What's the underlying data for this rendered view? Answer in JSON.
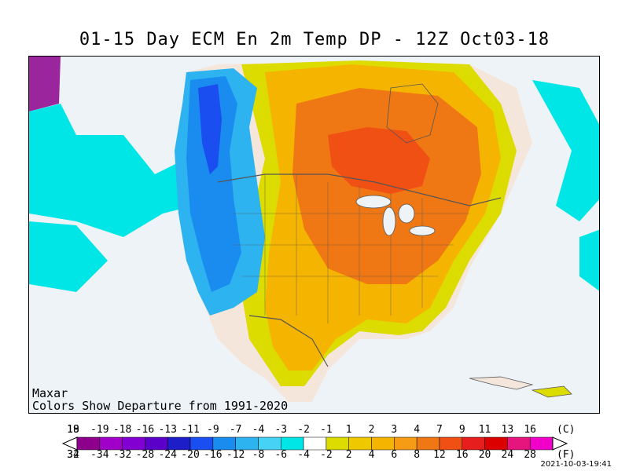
{
  "title": "01-15 Day ECM En 2m Temp DP - 12Z Oct03-18",
  "credit": {
    "provider": "Maxar",
    "note": "Colors Show Departure from 1991-2020"
  },
  "legend": {
    "celsius_unit": "(C)",
    "fahrenheit_unit": "(F)",
    "celsius_ticks": [
      "-19",
      "-18",
      "-16",
      "-13",
      "-11",
      "-9",
      "-7",
      "-4",
      "-3",
      "-2",
      "-1",
      "1",
      "2",
      "3",
      "4",
      "7",
      "9",
      "11",
      "13",
      "16",
      "18",
      "19"
    ],
    "fahrenheit_ticks": [
      "-34",
      "-32",
      "-28",
      "-24",
      "-20",
      "-16",
      "-12",
      "-8",
      "-6",
      "-4",
      "-2",
      "2",
      "4",
      "6",
      "8",
      "12",
      "16",
      "20",
      "24",
      "28",
      "32",
      "34"
    ],
    "colors": [
      "#8c008c",
      "#a000c8",
      "#8200d2",
      "#5a00c8",
      "#1e1ec8",
      "#1a4ef0",
      "#1a8cf0",
      "#2db4f0",
      "#46d2f5",
      "#00e6e6",
      "#ffffff",
      "#dcdc00",
      "#f0c800",
      "#f5b400",
      "#f59b14",
      "#f07814",
      "#f05014",
      "#e61e1e",
      "#dc0000",
      "#e6147d",
      "#f000c8"
    ],
    "arrow_left": "#ffffff",
    "arrow_right": "#ffffff"
  },
  "timestamp": "2021-10-03-19:41"
}
